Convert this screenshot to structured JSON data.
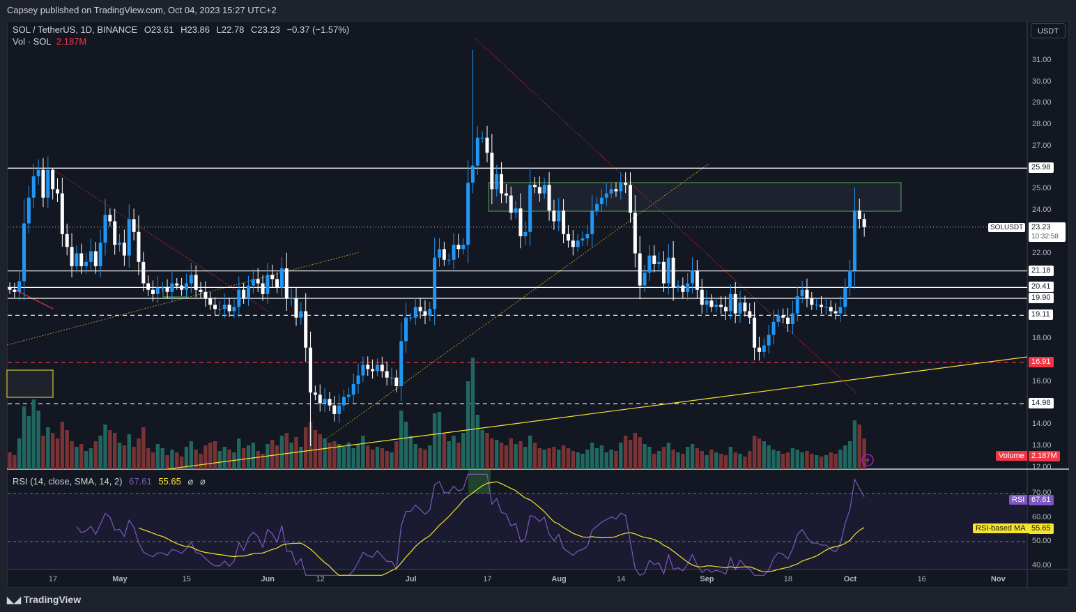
{
  "header": {
    "published": "Capsey published on TradingView.com, Oct 04, 2023 15:27 UTC+2",
    "symbol": "SOL / TetherUS, 1D, BINANCE",
    "open": "O23.61",
    "high": "H23.86",
    "low": "L22.78",
    "close": "C23.23",
    "change": "−0.37 (−1.57%)",
    "vol_label": "Vol · SOL",
    "vol_value": "2.187M"
  },
  "currency_button": "USDT",
  "price_axis": {
    "ticks": [
      "31.00",
      "30.00",
      "29.00",
      "28.00",
      "27.00",
      "25.00",
      "24.00",
      "22.00",
      "18.00",
      "16.00",
      "14.00",
      "13.00",
      "12.00"
    ],
    "tick_values": [
      31,
      30,
      29,
      28,
      27,
      25,
      24,
      22,
      18,
      16,
      14,
      13,
      12
    ]
  },
  "levels": [
    {
      "price": 25.98,
      "label": "25.98",
      "style": "solid",
      "color": "#ffffff"
    },
    {
      "price": 21.18,
      "label": "21.18",
      "style": "solid",
      "color": "#ffffff"
    },
    {
      "price": 20.41,
      "label": "20.41",
      "style": "solid",
      "color": "#ffffff"
    },
    {
      "price": 19.9,
      "label": "19.90",
      "style": "solid",
      "color": "#ffffff"
    },
    {
      "price": 19.11,
      "label": "19.11",
      "style": "dashed",
      "color": "#ffffff"
    },
    {
      "price": 16.91,
      "label": "16.91",
      "style": "dashed",
      "color": "#f23645"
    },
    {
      "price": 14.98,
      "label": "14.98",
      "style": "dashed",
      "color": "#ffffff"
    }
  ],
  "current_price": {
    "symbol": "SOLUSDT",
    "price": "23.23",
    "countdown": "10:32:58"
  },
  "volume_badge": {
    "label": "Volume",
    "value": "2.187M"
  },
  "rsi": {
    "legend": "RSI (14, close, SMA, 14, 2)",
    "value": "67.61",
    "ma_value": "55.65",
    "na1": "⌀",
    "na2": "⌀",
    "badge_label": "RSI",
    "ma_badge_label": "RSI-based MA",
    "ticks": [
      "70.00",
      "60.00",
      "50.00",
      "40.00"
    ],
    "tick_values": [
      70,
      60,
      50,
      40
    ]
  },
  "time_axis": {
    "labels": [
      "17",
      "May",
      "15",
      "Jun",
      "12",
      "Jul",
      "17",
      "Aug",
      "14",
      "Sep",
      "18",
      "Oct",
      "16",
      "Nov"
    ],
    "day_index": [
      9,
      23,
      37,
      54,
      65,
      84,
      100,
      115,
      128,
      146,
      163,
      176,
      191,
      207
    ]
  },
  "brand": "TradingView",
  "colors": {
    "up": "#2196f3",
    "down": "#ffffff",
    "vol_up": "#22675f",
    "vol_down": "#7a3334",
    "rsi": "#7e57c2",
    "rsi_ma": "#f7e52c"
  },
  "chart_data": {
    "type": "candlestick",
    "title": "SOL / TetherUS, 1D, BINANCE",
    "x_start": "2023-04-08",
    "x_end": "2023-10-04",
    "ylim": [
      11.9,
      32.9
    ],
    "first_open": 20.4,
    "close": [
      20.3,
      20.2,
      20.7,
      23.4,
      24.6,
      25.6,
      25.9,
      24.6,
      25.9,
      25.0,
      24.8,
      22.9,
      22.3,
      21.4,
      22.0,
      21.4,
      21.6,
      22.1,
      21.4,
      22.5,
      23.8,
      23.5,
      22.4,
      22.5,
      21.9,
      23.6,
      23.0,
      21.6,
      20.6,
      20.3,
      20.1,
      20.4,
      20.4,
      20.2,
      20.6,
      20.5,
      20.3,
      20.6,
      21.0,
      20.3,
      20.2,
      19.9,
      19.6,
      19.4,
      19.4,
      19.6,
      19.3,
      19.5,
      20.3,
      19.9,
      20.5,
      20.8,
      20.6,
      20.1,
      21.0,
      20.8,
      20.4,
      21.3,
      19.9,
      19.9,
      19.0,
      19.3,
      17.6,
      15.5,
      15.4,
      15.0,
      15.2,
      14.9,
      14.5,
      14.9,
      15.3,
      15.4,
      15.9,
      16.3,
      16.8,
      16.6,
      16.5,
      16.8,
      16.5,
      16.2,
      16.2,
      15.8,
      17.9,
      19.0,
      19.0,
      19.5,
      19.3,
      19.1,
      19.4,
      21.8,
      22.2,
      21.7,
      21.7,
      22.4,
      22.2,
      22.4,
      25.3,
      26.1,
      27.4,
      27.4,
      26.7,
      25.0,
      25.7,
      24.8,
      24.7,
      23.9,
      24.1,
      22.8,
      23.0,
      25.2,
      25.1,
      24.8,
      25.2,
      24.0,
      23.5,
      24.0,
      22.9,
      22.6,
      22.3,
      22.6,
      22.7,
      22.9,
      24.0,
      24.3,
      24.6,
      24.8,
      25.0,
      24.9,
      25.3,
      25.2,
      23.9,
      22.0,
      20.5,
      21.1,
      21.9,
      21.5,
      21.6,
      20.6,
      21.8,
      20.4,
      20.5,
      20.2,
      20.6,
      21.2,
      20.3,
      19.6,
      19.8,
      19.5,
      19.6,
      19.5,
      19.3,
      20.1,
      19.2,
      19.7,
      19.3,
      19.0,
      17.6,
      17.4,
      17.7,
      18.2,
      18.8,
      19.1,
      19.0,
      18.7,
      19.2,
      20.0,
      20.3,
      19.9,
      19.6,
      19.6,
      19.5,
      19.5,
      19.3,
      19.2,
      19.5,
      20.4,
      21.2,
      24.0,
      23.61,
      23.23
    ],
    "wick_overrides": [
      {
        "i": 97,
        "high": 31.5
      },
      {
        "i": 63,
        "low": 13.0
      },
      {
        "i": 179,
        "high": 23.86,
        "low": 22.78
      },
      {
        "i": 9,
        "high": 25.98
      }
    ],
    "volume_millions": [
      1.2,
      1.0,
      2.2,
      4.5,
      3.8,
      5.0,
      4.2,
      2.4,
      3.0,
      2.6,
      2.2,
      3.4,
      2.8,
      2.0,
      1.6,
      1.8,
      1.3,
      1.5,
      2.0,
      2.4,
      3.2,
      2.8,
      2.6,
      1.9,
      1.7,
      2.5,
      1.6,
      2.2,
      3.0,
      1.5,
      1.2,
      1.8,
      1.5,
      1.0,
      1.4,
      1.2,
      0.9,
      1.6,
      2.0,
      1.4,
      1.1,
      1.7,
      1.9,
      2.0,
      1.3,
      1.6,
      1.4,
      1.2,
      2.2,
      1.5,
      1.7,
      1.9,
      1.3,
      1.1,
      1.8,
      2.1,
      1.7,
      2.4,
      2.6,
      1.9,
      2.3,
      1.6,
      3.0,
      3.4,
      2.8,
      2.5,
      2.2,
      1.9,
      2.0,
      1.8,
      1.6,
      1.9,
      1.5,
      1.8,
      2.4,
      1.7,
      1.4,
      1.6,
      1.5,
      1.3,
      1.2,
      2.0,
      4.2,
      3.4,
      2.4,
      1.8,
      1.5,
      1.4,
      1.7,
      4.0,
      4.1,
      2.6,
      2.0,
      2.4,
      1.9,
      2.6,
      6.3,
      8.0,
      3.9,
      2.8,
      2.6,
      2.2,
      2.1,
      1.9,
      1.7,
      2.2,
      1.8,
      2.0,
      1.6,
      2.4,
      1.9,
      1.5,
      1.4,
      1.5,
      1.6,
      1.4,
      1.7,
      1.5,
      1.3,
      1.2,
      1.1,
      1.4,
      1.9,
      1.5,
      1.7,
      1.2,
      1.4,
      1.3,
      1.9,
      2.4,
      2.1,
      2.6,
      2.3,
      1.8,
      1.6,
      1.1,
      1.3,
      1.6,
      1.9,
      1.4,
      1.2,
      1.1,
      1.6,
      1.8,
      1.5,
      1.3,
      1.0,
      1.4,
      1.2,
      1.1,
      1.0,
      1.6,
      1.2,
      1.1,
      0.9,
      1.3,
      2.4,
      2.2,
      2.0,
      1.7,
      1.4,
      1.3,
      1.1,
      1.2,
      1.5,
      1.4,
      1.2,
      1.3,
      1.1,
      1.0,
      0.9,
      1.0,
      1.2,
      1.1,
      1.4,
      1.7,
      2.0,
      3.5,
      3.2,
      2.187
    ],
    "rsi_range": [
      36,
      78
    ]
  }
}
